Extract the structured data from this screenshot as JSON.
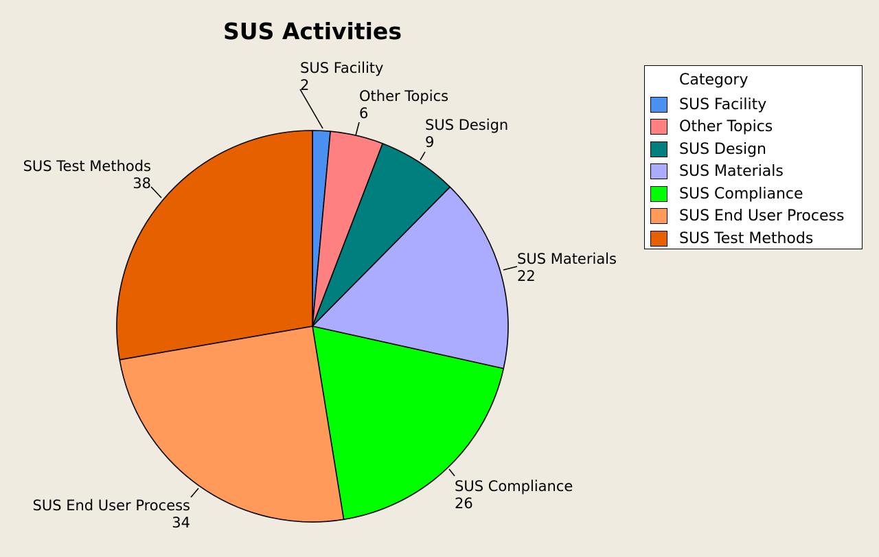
{
  "chart_data": {
    "type": "pie",
    "title": "SUS Activities",
    "legend": {
      "title": "Category",
      "placement": "right"
    },
    "slices": [
      {
        "label": "SUS Facility",
        "value": 2,
        "color": "#4A90F0"
      },
      {
        "label": "Other Topics",
        "value": 6,
        "color": "#FF8080"
      },
      {
        "label": "SUS Design",
        "value": 9,
        "color": "#007F7F"
      },
      {
        "label": "SUS Materials",
        "value": 22,
        "color": "#ABABFF"
      },
      {
        "label": "SUS Compliance",
        "value": 26,
        "color": "#00FF00"
      },
      {
        "label": "SUS End User Process",
        "value": 34,
        "color": "#FF9A5A"
      },
      {
        "label": "SUS Test Methods",
        "value": 38,
        "color": "#E66000"
      }
    ]
  }
}
